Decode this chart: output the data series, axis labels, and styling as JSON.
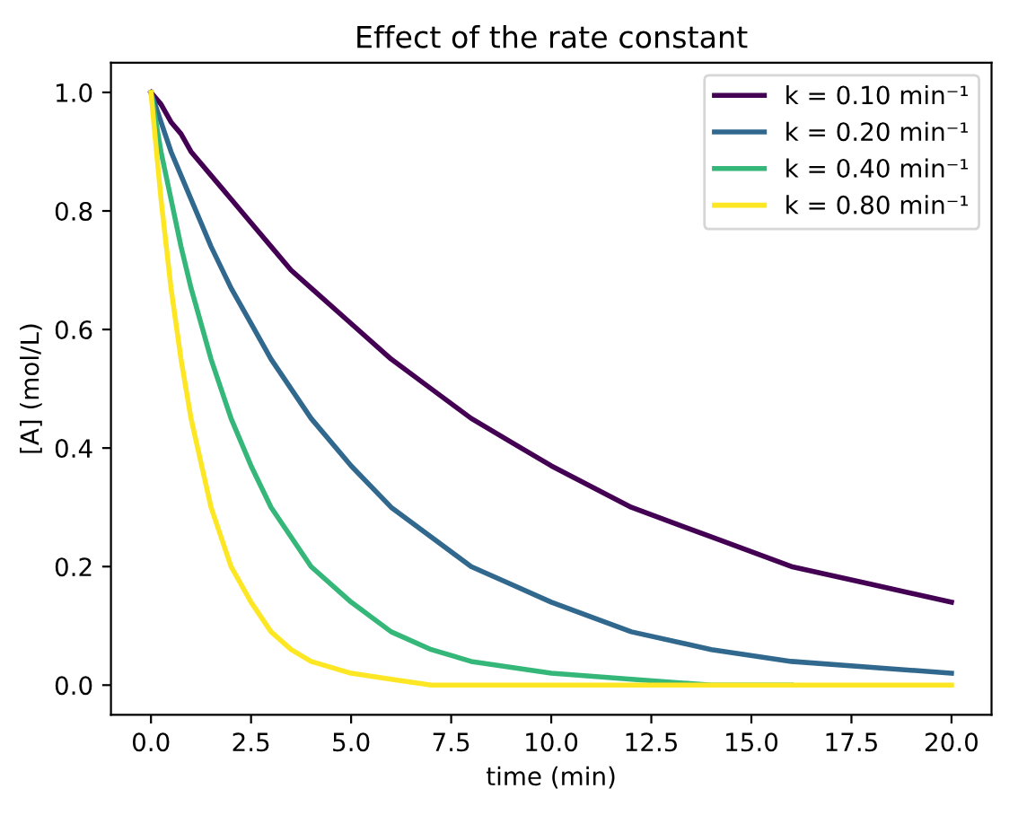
{
  "chart_data": {
    "type": "line",
    "title": "Effect of the rate constant",
    "xlabel": "time (min)",
    "ylabel": "[A] (mol/L)",
    "x": [
      0,
      0.25,
      0.5,
      0.75,
      1,
      1.5,
      2,
      2.5,
      3,
      3.5,
      4,
      5,
      6,
      7,
      8,
      9,
      10,
      12,
      14,
      16,
      18,
      20
    ],
    "series": [
      {
        "name": "k = 0.10 min⁻¹",
        "color": "#440154",
        "values": [
          1,
          0.98,
          0.95,
          0.93,
          0.9,
          0.86,
          0.82,
          0.78,
          0.74,
          0.7,
          0.67,
          0.61,
          0.55,
          0.5,
          0.45,
          0.41,
          0.37,
          0.3,
          0.25,
          0.2,
          0.17,
          0.14
        ]
      },
      {
        "name": "k = 0.20 min⁻¹",
        "color": "#31688e",
        "values": [
          1,
          0.95,
          0.9,
          0.86,
          0.82,
          0.74,
          0.67,
          0.61,
          0.55,
          0.5,
          0.45,
          0.37,
          0.3,
          0.25,
          0.2,
          0.17,
          0.14,
          0.09,
          0.06,
          0.04,
          0.03,
          0.02
        ]
      },
      {
        "name": "k = 0.40 min⁻¹",
        "color": "#35b779",
        "values": [
          1,
          0.9,
          0.82,
          0.74,
          0.67,
          0.55,
          0.45,
          0.37,
          0.3,
          0.25,
          0.2,
          0.14,
          0.09,
          0.06,
          0.04,
          0.03,
          0.02,
          0.01,
          0.0,
          0.0,
          null,
          null
        ]
      },
      {
        "name": "k = 0.80 min⁻¹",
        "color": "#fde725",
        "values": [
          1,
          0.82,
          0.67,
          0.55,
          0.45,
          0.3,
          0.2,
          0.14,
          0.09,
          0.06,
          0.04,
          0.02,
          0.01,
          0.0,
          0.0,
          0.0,
          0.0,
          0.0,
          0.0,
          0.0,
          0.0,
          0.0
        ]
      }
    ],
    "xlim": [
      -1,
      21
    ],
    "xticks": [
      {
        "value": 0,
        "label": "0.0"
      },
      2.5,
      {
        "value": 5,
        "label": "5.0"
      },
      7.5,
      {
        "value": 10,
        "label": "10.0"
      },
      12.5,
      {
        "value": 15,
        "label": "15.0"
      },
      17.5,
      {
        "value": 20,
        "label": "20.0"
      }
    ],
    "ylim": [
      -0.05,
      1.05
    ],
    "yticks": [
      {
        "value": 0,
        "label": "0.0"
      },
      0.2,
      0.4,
      0.6,
      0.8,
      {
        "value": 1,
        "label": "1.0"
      }
    ],
    "legend": "top right",
    "grid": false,
    "marker": "none",
    "line_style": "solid"
  }
}
